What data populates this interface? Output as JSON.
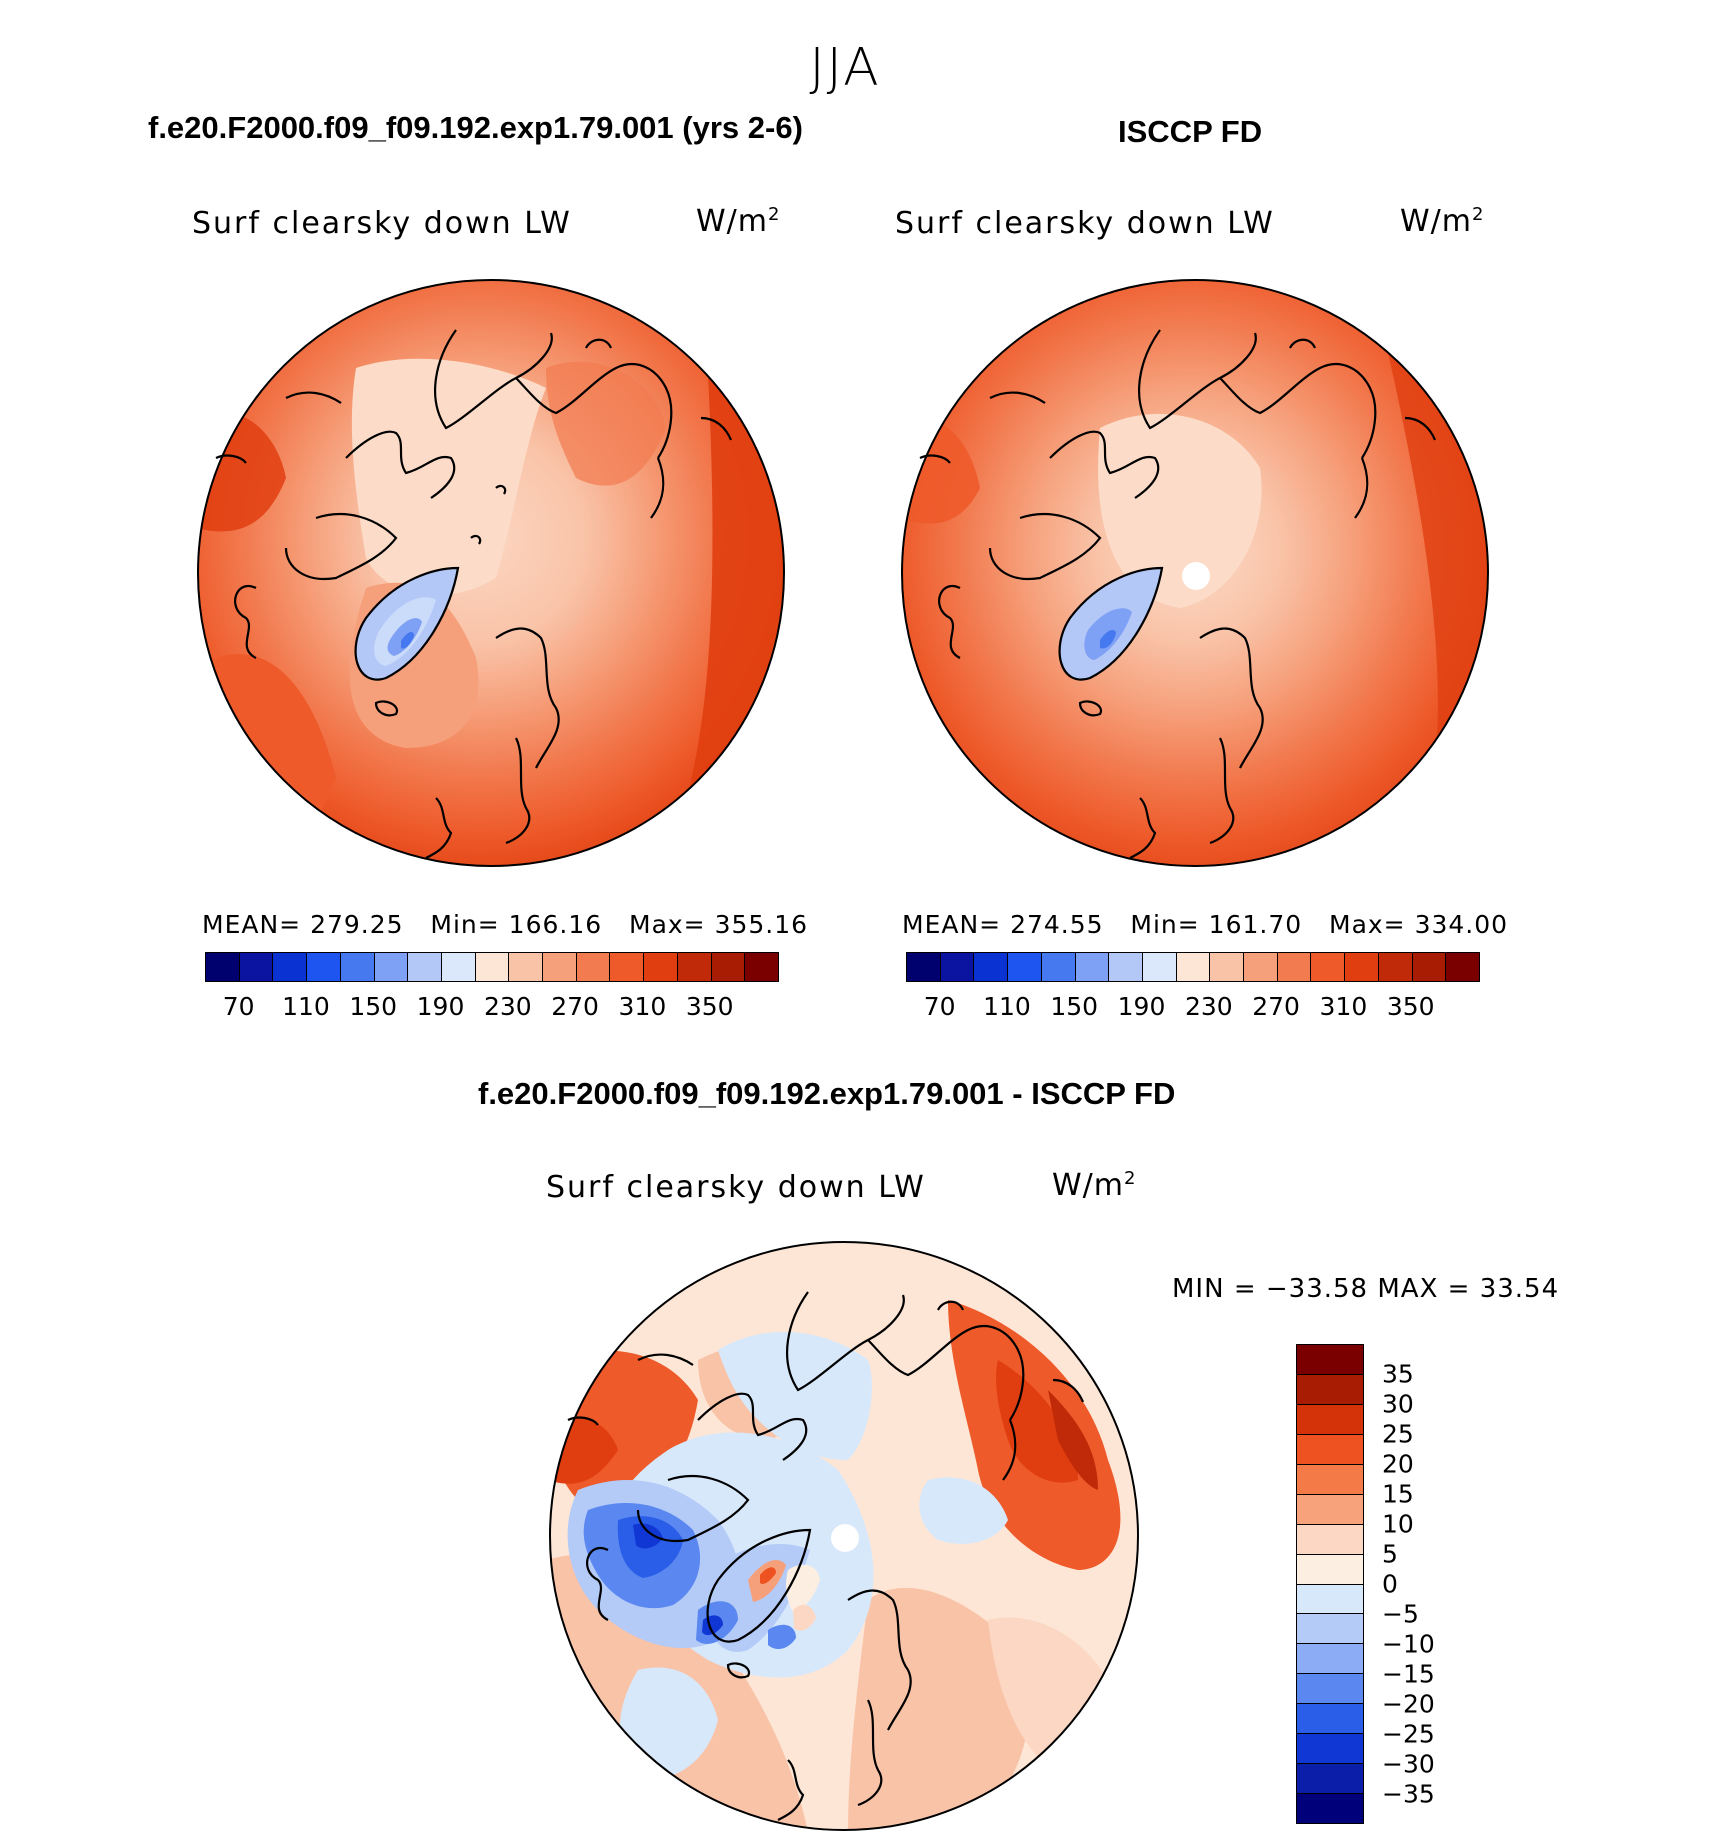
{
  "season": "JJA",
  "panels": {
    "model": {
      "case": "f.e20.F2000.f09_f09.192.exp1.79.001 (yrs 2-6)",
      "variable": "Surf clearsky down LW",
      "units_base": "W/m",
      "units_exp": "2",
      "mean_label": "MEAN=",
      "mean": "279.25",
      "min_label": "Min=",
      "min": "166.16",
      "max_label": "Max=",
      "max": "355.16"
    },
    "obs": {
      "case": "ISCCP FD",
      "variable": "Surf clearsky down LW",
      "units_base": "W/m",
      "units_exp": "2",
      "mean_label": "MEAN=",
      "mean": "274.55",
      "min_label": "Min=",
      "min": "161.70",
      "max_label": "Max=",
      "max": "334.00"
    },
    "diff": {
      "case": "f.e20.F2000.f09_f09.192.exp1.79.001 - ISCCP FD",
      "variable": "Surf clearsky down LW",
      "units_base": "W/m",
      "units_exp": "2",
      "minmax": "MIN = −33.58 MAX =   33.54"
    }
  },
  "colorbar_abs": {
    "colors": [
      "#00006e",
      "#0a14a0",
      "#0a32d2",
      "#1e55f0",
      "#4678f0",
      "#7ea0f5",
      "#b4c8f8",
      "#dbe8fb",
      "#fde6d6",
      "#f9c3a8",
      "#f6a07b",
      "#f27b50",
      "#ee5a2a",
      "#e03e10",
      "#c02a08",
      "#a81c04",
      "#7a0000"
    ],
    "labels": [
      "70",
      "110",
      "150",
      "190",
      "230",
      "270",
      "310",
      "350"
    ]
  },
  "colorbar_diff": {
    "colors": [
      "#7a0000",
      "#a81c04",
      "#d43208",
      "#ee5220",
      "#f47a48",
      "#f8a27c",
      "#fcd8c4",
      "#fdeee2",
      "#d8e8fb",
      "#b4cbf8",
      "#8cadf5",
      "#5a88f0",
      "#2a5ee8",
      "#1036d4",
      "#0a1eaa",
      "#00007a"
    ],
    "labels": [
      "35",
      "30",
      "25",
      "20",
      "15",
      "10",
      "5",
      "0",
      "−5",
      "−10",
      "−15",
      "−20",
      "−25",
      "−30",
      "−35"
    ]
  }
}
